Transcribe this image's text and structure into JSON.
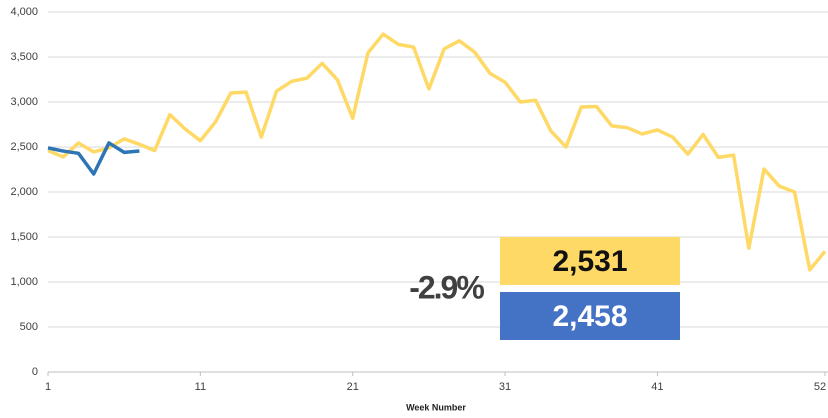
{
  "chart_data": {
    "type": "line",
    "x_label": "Week Number",
    "x": [
      1,
      2,
      3,
      4,
      5,
      6,
      7,
      8,
      9,
      10,
      11,
      12,
      13,
      14,
      15,
      16,
      17,
      18,
      19,
      20,
      21,
      22,
      23,
      24,
      25,
      26,
      27,
      28,
      29,
      30,
      31,
      32,
      33,
      34,
      35,
      36,
      37,
      38,
      39,
      40,
      41,
      42,
      43,
      44,
      45,
      46,
      47,
      48,
      49,
      50,
      51,
      52
    ],
    "xlim": [
      1,
      52
    ],
    "xticks": [
      1,
      11,
      21,
      31,
      41,
      52
    ],
    "ylim": [
      0,
      4000
    ],
    "yticks": [
      0,
      500,
      {
        "value": 1000,
        "label": "1,000"
      },
      {
        "value": 1500,
        "label": "1,500"
      },
      {
        "value": 2000,
        "label": "2,000"
      },
      {
        "value": 2500,
        "label": "2,500"
      },
      {
        "value": 3000,
        "label": "3,000"
      },
      {
        "value": 3500,
        "label": "3,500"
      },
      {
        "value": 4000,
        "label": "4,000"
      }
    ],
    "grid": true,
    "series": [
      {
        "color": "#ffd966",
        "values": [
          2460,
          2390,
          2545,
          2445,
          2490,
          2590,
          2530,
          2460,
          2860,
          2700,
          2570,
          2780,
          3100,
          3110,
          2610,
          3120,
          3230,
          3265,
          3430,
          3245,
          2820,
          3545,
          3755,
          3640,
          3610,
          3145,
          3590,
          3680,
          3555,
          3320,
          3220,
          3000,
          3020,
          2680,
          2500,
          2945,
          2950,
          2735,
          2715,
          2645,
          2690,
          2610,
          2420,
          2640,
          2385,
          2410,
          1375,
          2255,
          2065,
          2000,
          1135,
          1340
        ]
      },
      {
        "color": "#2e75b6",
        "values": [
          2490,
          2455,
          2430,
          2200,
          2545,
          2440,
          2455,
          null,
          null,
          null,
          null,
          null,
          null,
          null,
          null,
          null,
          null,
          null,
          null,
          null,
          null,
          null,
          null,
          null,
          null,
          null,
          null,
          null,
          null,
          null,
          null,
          null,
          null,
          null,
          null,
          null,
          null,
          null,
          null,
          null,
          null,
          null,
          null,
          null,
          null,
          null,
          null,
          null,
          null,
          null,
          null,
          null
        ]
      }
    ],
    "annotations": {
      "change": "-2.9%",
      "change_color": "#c00000",
      "cards": [
        {
          "label": "2,531",
          "color": "#ffd966",
          "text_color": "#111111"
        },
        {
          "label": "2,458",
          "color": "#4472c4",
          "text_color": "#ffffff"
        }
      ]
    }
  }
}
